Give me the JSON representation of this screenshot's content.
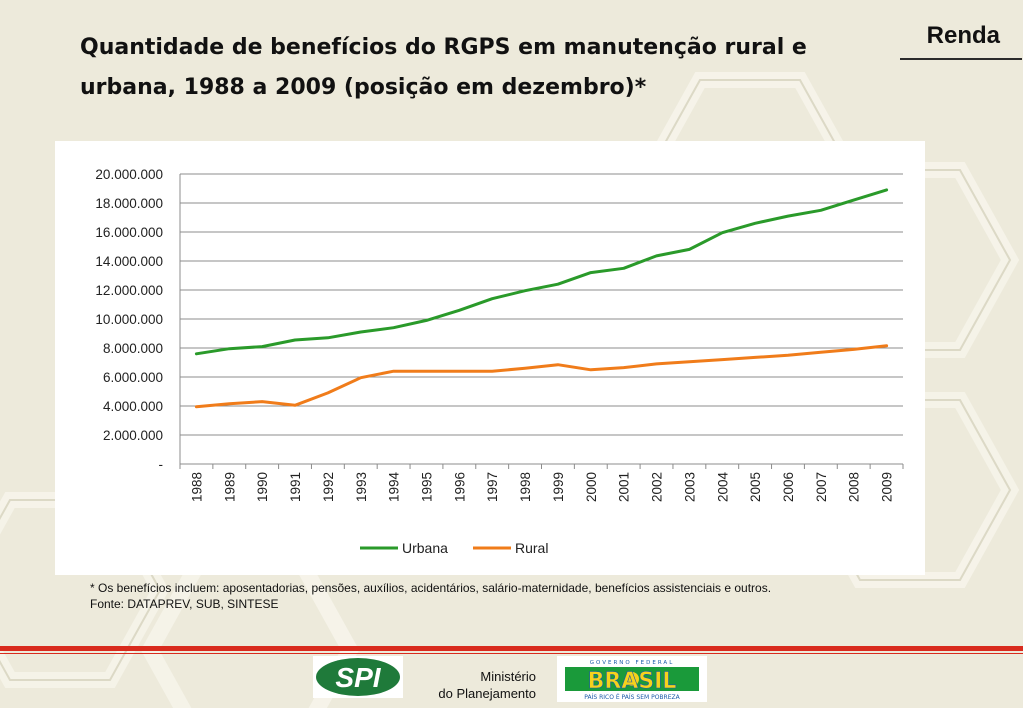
{
  "slide": {
    "title": "Quantidade de benefícios do RGPS em manutenção rural e urbana, 1988 a 2009 (posição em dezembro)*",
    "section_label": "Renda"
  },
  "chart_data": {
    "type": "line",
    "title": "",
    "xlabel": "",
    "ylabel": "",
    "x": [
      "1988",
      "1989",
      "1990",
      "1991",
      "1992",
      "1993",
      "1994",
      "1995",
      "1996",
      "1997",
      "1998",
      "1999",
      "2000",
      "2001",
      "2002",
      "2003",
      "2004",
      "2005",
      "2006",
      "2007",
      "2008",
      "2009"
    ],
    "ylim": [
      0,
      20000000
    ],
    "yticks": [
      "-",
      "2.000.000",
      "4.000.000",
      "6.000.000",
      "8.000.000",
      "10.000.000",
      "12.000.000",
      "14.000.000",
      "16.000.000",
      "18.000.000",
      "20.000.000"
    ],
    "grid": true,
    "legend_position": "bottom",
    "series": [
      {
        "name": "Urbana",
        "color": "#2a9a2a",
        "values": [
          7600000,
          7950000,
          8100000,
          8550000,
          8700000,
          9100000,
          9400000,
          9900000,
          10600000,
          11400000,
          11950000,
          12400000,
          13200000,
          13500000,
          14350000,
          14800000,
          15950000,
          16600000,
          17100000,
          17500000,
          18200000,
          18900000
        ]
      },
      {
        "name": "Rural",
        "color": "#f07c1a",
        "values": [
          3950000,
          4150000,
          4300000,
          4050000,
          4900000,
          5950000,
          6400000,
          6400000,
          6400000,
          6400000,
          6600000,
          6850000,
          6500000,
          6650000,
          6900000,
          7050000,
          7200000,
          7350000,
          7500000,
          7700000,
          7900000,
          8150000
        ]
      }
    ]
  },
  "footnote": {
    "line1": "* Os benefícios incluem: aposentadorias, pensões, auxílios, acidentários, salário-maternidade, benefícios assistenciais e outros.",
    "line2": "Fonte: DATAPREV, SUB, SINTESE"
  },
  "footer": {
    "spi_logo_text": "SPI",
    "ministry_line1": "Ministério",
    "ministry_line2": "do Planejamento",
    "brasil_top": "GOVERNO FEDERAL",
    "brasil_word": "BRASIL",
    "brasil_slogan": "PAÍS RICO É PAÍS SEM POBREZA",
    "accent_red": "#d92b1d"
  }
}
